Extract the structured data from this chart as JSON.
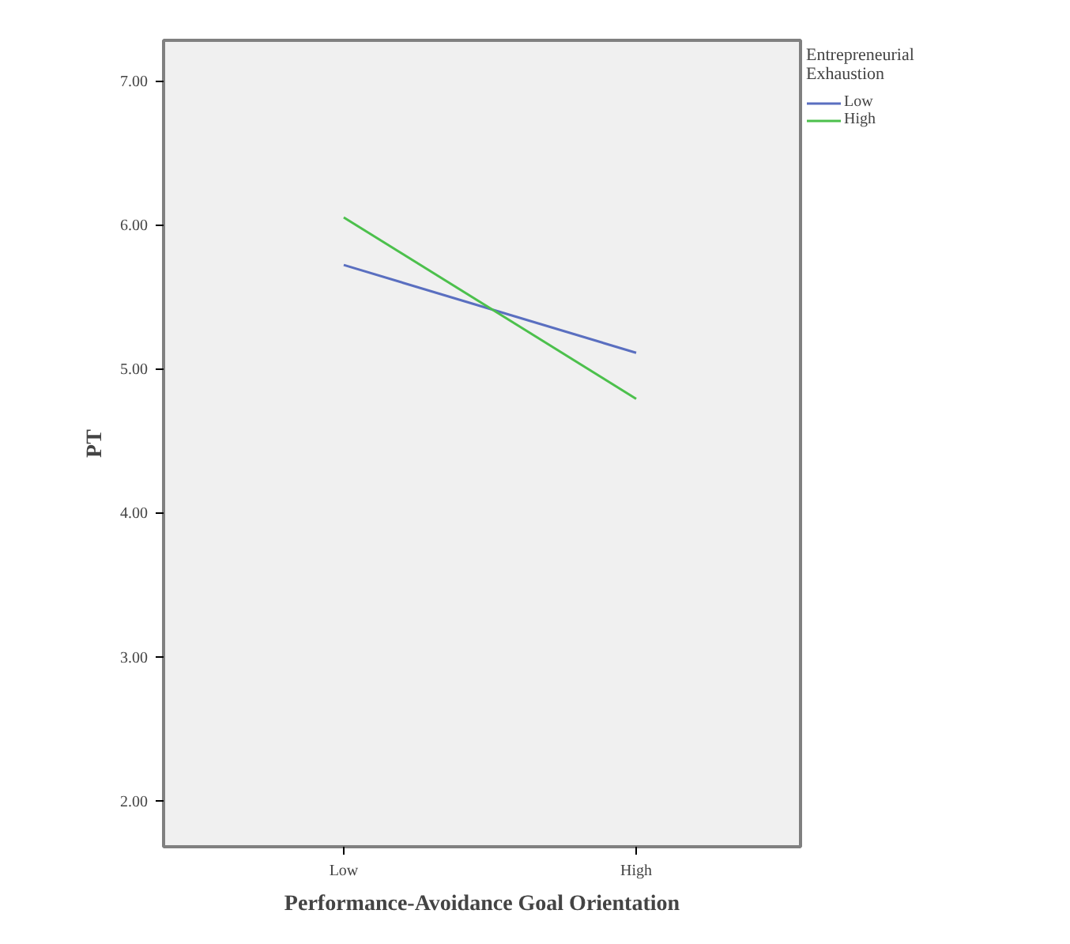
{
  "chart_data": {
    "type": "line",
    "xlabel": "Performance-Avoidance Goal Orientation",
    "ylabel": "PT",
    "legend_title": "Entrepreneurial Exhaustion",
    "categories": [
      "Low",
      "High"
    ],
    "series": [
      {
        "name": "Low",
        "color": "#5a6fc0",
        "values": [
          5.72,
          5.11
        ]
      },
      {
        "name": "High",
        "color": "#4cc04c",
        "values": [
          6.05,
          4.79
        ]
      }
    ],
    "ylim": [
      1.68,
      7.28
    ],
    "yticks": [
      {
        "value": 2,
        "label": "2.00"
      },
      {
        "value": 3,
        "label": "3.00"
      },
      {
        "value": 4,
        "label": "4.00"
      },
      {
        "value": 5,
        "label": "5.00"
      },
      {
        "value": 6,
        "label": "6.00"
      },
      {
        "value": 7,
        "label": "7.00"
      }
    ],
    "grid": false,
    "legend": "right",
    "marker": "none",
    "line_style": "solid"
  }
}
